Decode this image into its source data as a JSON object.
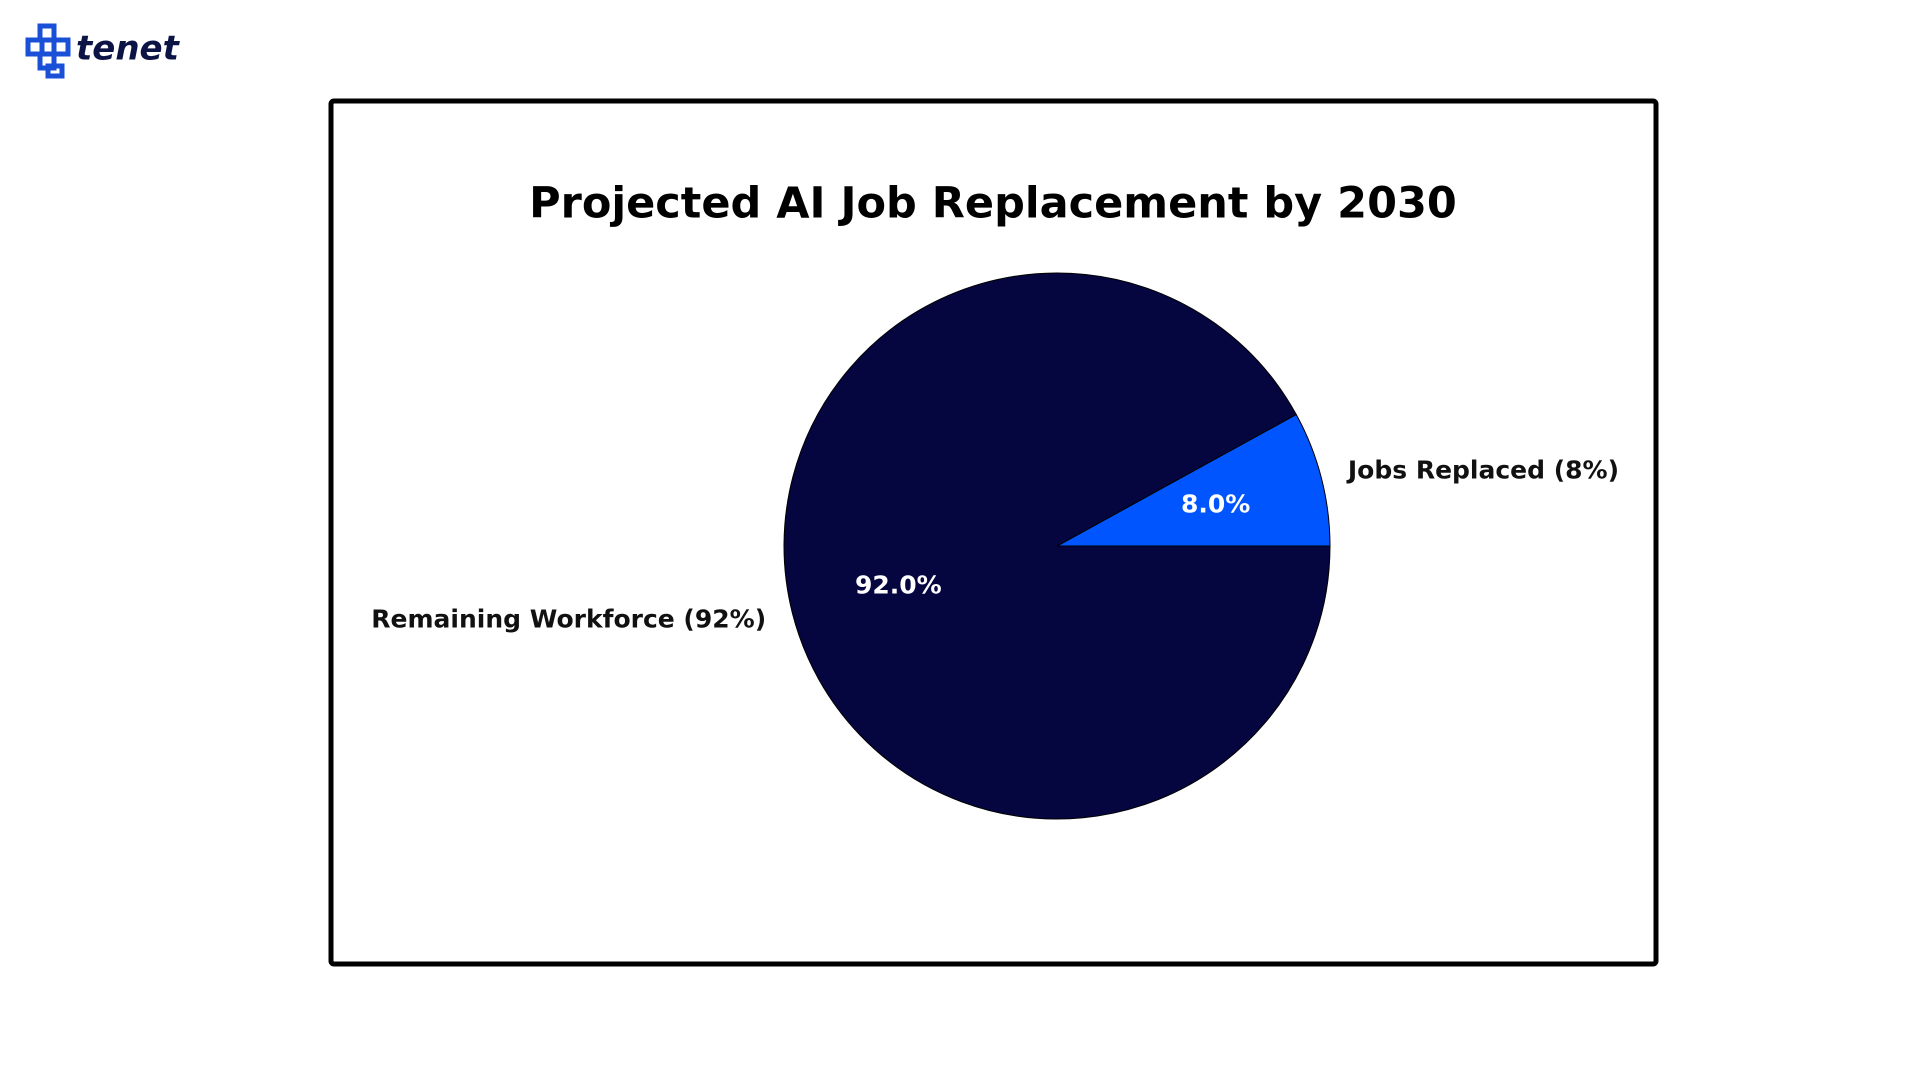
{
  "logo": {
    "text": "tenet"
  },
  "chart_data": {
    "type": "pie",
    "title": "Projected AI Job Replacement by 2030",
    "categories": [
      "Jobs Replaced (8%)",
      "Remaining Workforce (92%)"
    ],
    "values": [
      8,
      92
    ],
    "value_labels": [
      "8.0%",
      "92.0%"
    ],
    "colors": [
      "#0055ff",
      "#050540"
    ]
  }
}
